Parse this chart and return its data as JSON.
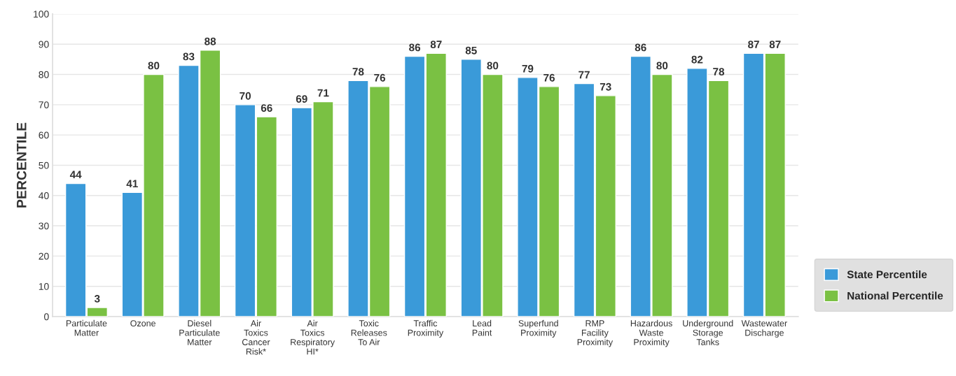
{
  "chart_data": {
    "type": "bar",
    "ylabel": "PERCENTILE",
    "categories": [
      "Particulate\nMatter",
      "Ozone",
      "Diesel\nParticulate\nMatter",
      "Air\nToxics\nCancer\nRisk*",
      "Air\nToxics\nRespiratory\nHI*",
      "Toxic\nReleases\nTo Air",
      "Traffic\nProximity",
      "Lead\nPaint",
      "Superfund\nProximity",
      "RMP\nFacility\nProximity",
      "Hazardous\nWaste\nProximity",
      "Underground\nStorage\nTanks",
      "Wastewater\nDischarge"
    ],
    "series": [
      {
        "name": "State Percentile",
        "color": "#3a9ad9",
        "values": [
          44,
          41,
          83,
          70,
          69,
          78,
          86,
          85,
          79,
          77,
          86,
          82,
          87
        ]
      },
      {
        "name": "National Percentile",
        "color": "#7ac143",
        "values": [
          3,
          80,
          88,
          66,
          71,
          76,
          87,
          80,
          76,
          73,
          80,
          78,
          87
        ]
      }
    ],
    "ylim": [
      0,
      100
    ],
    "yticks": [
      0,
      10,
      20,
      30,
      40,
      50,
      60,
      70,
      80,
      90,
      100
    ],
    "grid": "y",
    "legend": "bottom right",
    "data_labels": true
  }
}
